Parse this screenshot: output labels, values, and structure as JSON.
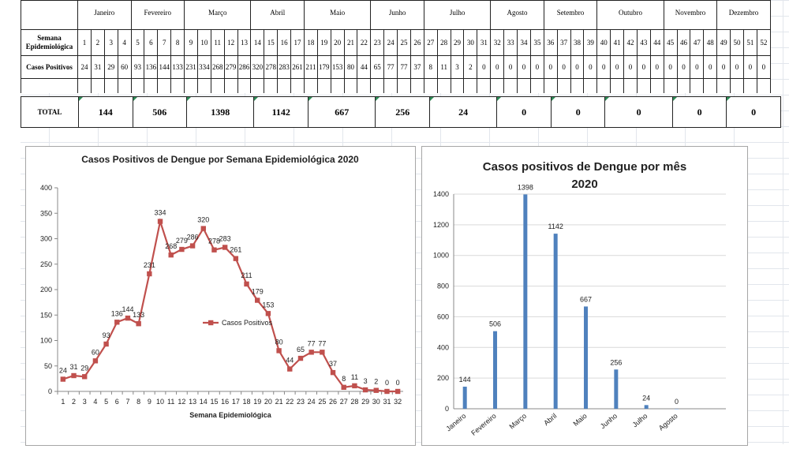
{
  "table": {
    "months": [
      "Janeiro",
      "Fevereiro",
      "Março",
      "Abril",
      "Maio",
      "Junho",
      "Julho",
      "Agosto",
      "Setembro",
      "Outubro",
      "Novembro",
      "Dezembro"
    ],
    "month_week_counts": [
      4,
      4,
      5,
      4,
      5,
      4,
      5,
      4,
      4,
      5,
      4,
      4
    ],
    "row_week_label": "Semana Epidemiológica",
    "row_cases_label": "Casos Positivos",
    "weeks": [
      "1",
      "2",
      "3",
      "4",
      "5",
      "6",
      "7",
      "8",
      "9",
      "10",
      "11",
      "12",
      "13",
      "14",
      "15",
      "16",
      "17",
      "18",
      "19",
      "20",
      "21",
      "22",
      "23",
      "24",
      "25",
      "26",
      "27",
      "28",
      "29",
      "30",
      "31",
      "32",
      "33",
      "34",
      "35",
      "36",
      "37",
      "38",
      "39",
      "40",
      "41",
      "42",
      "43",
      "44",
      "45",
      "46",
      "47",
      "48",
      "49",
      "50",
      "51",
      "52"
    ],
    "cases": [
      "24",
      "31",
      "29",
      "60",
      "93",
      "136",
      "144",
      "133",
      "231",
      "334",
      "268",
      "279",
      "286",
      "320",
      "278",
      "283",
      "261",
      "211",
      "179",
      "153",
      "80",
      "44",
      "65",
      "77",
      "77",
      "37",
      "8",
      "11",
      "3",
      "2",
      "0",
      "0",
      "0",
      "0",
      "0",
      "0",
      "0",
      "0",
      "0",
      "0",
      "0",
      "0",
      "0",
      "0",
      "0",
      "0",
      "0",
      "0",
      "0",
      "0",
      "0",
      "0"
    ],
    "total_label": "TOTAL",
    "totals": [
      "144",
      "506",
      "1398",
      "1142",
      "667",
      "256",
      "24",
      "0",
      "0",
      "0",
      "0",
      "0"
    ]
  },
  "chart_data": [
    {
      "type": "line",
      "title": "Casos  Positivos de Dengue por Semana Epidemiológica 2020",
      "xlabel": "Semana Epidemiológica",
      "ylabel": "",
      "ylim": [
        0,
        400
      ],
      "yticks": [
        0,
        50,
        100,
        150,
        200,
        250,
        300,
        350,
        400
      ],
      "x": [
        1,
        2,
        3,
        4,
        5,
        6,
        7,
        8,
        9,
        10,
        11,
        12,
        13,
        14,
        15,
        16,
        17,
        18,
        19,
        20,
        21,
        22,
        23,
        24,
        25,
        26,
        27,
        28,
        29,
        30,
        31,
        32
      ],
      "series": [
        {
          "name": "Casos  Positivos",
          "values": [
            24,
            31,
            29,
            60,
            93,
            136,
            144,
            133,
            231,
            334,
            268,
            279,
            286,
            320,
            278,
            283,
            261,
            211,
            179,
            153,
            80,
            44,
            65,
            77,
            77,
            37,
            8,
            11,
            3,
            2,
            0,
            0
          ]
        }
      ],
      "data_labels": [
        24,
        31,
        29,
        60,
        93,
        136,
        144,
        133,
        231,
        334,
        268,
        279,
        286,
        320,
        278,
        283,
        261,
        211,
        179,
        153,
        80,
        44,
        65,
        77,
        77,
        37,
        8,
        11,
        3,
        2,
        0,
        0
      ],
      "legend": "center-right",
      "grid": false,
      "color": "#c0504d"
    },
    {
      "type": "bar",
      "title": "Casos positivos  de Dengue por mês 2020",
      "categories": [
        "Janeiro",
        "Fevereiro",
        "Março",
        "Abril",
        "Maio",
        "Junho",
        "Julho",
        "Agosto"
      ],
      "values": [
        144,
        506,
        1398,
        1142,
        667,
        256,
        24,
        0
      ],
      "xlabel": "",
      "ylabel": "",
      "ylim": [
        0,
        1400
      ],
      "yticks": [
        0,
        200,
        400,
        600,
        800,
        1000,
        1200,
        1400
      ],
      "grid": true,
      "color": "#4f81bd"
    }
  ]
}
